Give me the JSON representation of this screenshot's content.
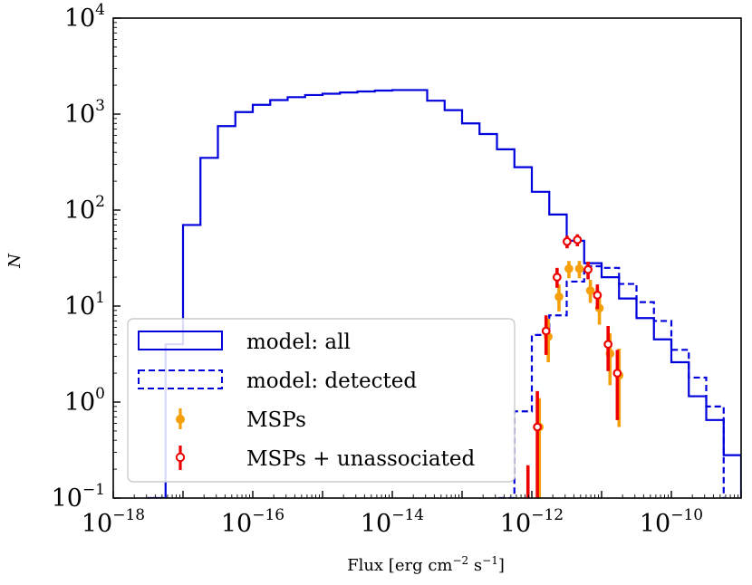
{
  "chart_data": {
    "type": "step-histogram-with-errorbars",
    "xscale": "log",
    "yscale": "log",
    "xlabel": {
      "main": "Flux [erg cm",
      "exp1": "−2",
      "mid": " s",
      "exp2": "−1",
      "end": "]"
    },
    "ylabel": "N",
    "xlim": [
      1e-18,
      1e-09
    ],
    "ylim": [
      0.1,
      10000
    ],
    "x_ticks": [
      {
        "base": "10",
        "exp": "−18",
        "value": 1e-18
      },
      {
        "base": "10",
        "exp": "−16",
        "value": 1e-16
      },
      {
        "base": "10",
        "exp": "−14",
        "value": 1e-14
      },
      {
        "base": "10",
        "exp": "−12",
        "value": 1e-12
      },
      {
        "base": "10",
        "exp": "−10",
        "value": 1e-10
      }
    ],
    "y_ticks": [
      {
        "base": "10",
        "exp": "−1",
        "value": 0.1
      },
      {
        "base": "10",
        "exp": "0",
        "value": 1
      },
      {
        "base": "10",
        "exp": "1",
        "value": 10
      },
      {
        "base": "10",
        "exp": "2",
        "value": 100
      },
      {
        "base": "10",
        "exp": "3",
        "value": 1000
      },
      {
        "base": "10",
        "exp": "4",
        "value": 10000
      }
    ],
    "bin_edges_log10": [
      -17.5,
      -17.25,
      -17.0,
      -16.75,
      -16.5,
      -16.25,
      -16.0,
      -15.75,
      -15.5,
      -15.25,
      -15.0,
      -14.75,
      -14.5,
      -14.25,
      -14.0,
      -13.75,
      -13.5,
      -13.25,
      -13.0,
      -12.75,
      -12.5,
      -12.25,
      -12.0,
      -11.75,
      -11.5,
      -11.25,
      -11.0,
      -10.75,
      -10.5,
      -10.25,
      -10.0,
      -9.75,
      -9.5,
      -9.25,
      -9.0
    ],
    "series": [
      {
        "name": "model: all",
        "style": "solid-step",
        "color": "#0000dd",
        "values": [
          0.1,
          4,
          70,
          350,
          750,
          1050,
          1250,
          1400,
          1500,
          1580,
          1630,
          1680,
          1720,
          1760,
          1780,
          1780,
          1380,
          1100,
          800,
          620,
          430,
          280,
          155,
          90,
          48,
          28,
          20,
          12,
          7.5,
          4.5,
          2.6,
          1.15,
          0.65,
          0.28
        ]
      },
      {
        "name": "model: detected",
        "style": "dashed-step",
        "color": "#0000dd",
        "start_log10": -12.5,
        "values": [
          0.1,
          0.8,
          5,
          8,
          18,
          26,
          25,
          17,
          11,
          7,
          3.5,
          1.8,
          0.9
        ]
      },
      {
        "name": "MSPs",
        "style": "filled-errorbar",
        "color": "#f5a00a",
        "points": [
          {
            "x": 1.28e-12,
            "y": 0.55,
            "lo": 0.1,
            "hi": 1.1
          },
          {
            "x": 1.72e-12,
            "y": 4.8,
            "lo": 2.6,
            "hi": 7.4
          },
          {
            "x": 2.45e-12,
            "y": 12.5,
            "lo": 8.8,
            "hi": 16.8
          },
          {
            "x": 3.4e-12,
            "y": 24.5,
            "lo": 19.5,
            "hi": 29.5
          },
          {
            "x": 4.8e-12,
            "y": 24.5,
            "lo": 19.5,
            "hi": 29.5
          },
          {
            "x": 6.9e-12,
            "y": 14.5,
            "lo": 10.8,
            "hi": 18.8
          },
          {
            "x": 9.3e-12,
            "y": 9.5,
            "lo": 6.4,
            "hi": 13.0
          },
          {
            "x": 1.32e-11,
            "y": 3.2,
            "lo": 1.5,
            "hi": 5.2
          },
          {
            "x": 1.78e-11,
            "y": 1.9,
            "lo": 0.55,
            "hi": 3.6
          }
        ]
      },
      {
        "name": "MSPs + unassociated",
        "style": "hollow-errorbar",
        "color": "#ee0000",
        "points": [
          {
            "x": 8.8e-13,
            "y": 0.1,
            "lo": 0.05,
            "hi": 0.22
          },
          {
            "x": 1.2e-12,
            "y": 0.55,
            "lo": 0.1,
            "hi": 1.3
          },
          {
            "x": 1.6e-12,
            "y": 5.5,
            "lo": 3.1,
            "hi": 8.0
          },
          {
            "x": 2.3e-12,
            "y": 20,
            "lo": 15.5,
            "hi": 25
          },
          {
            "x": 3.2e-12,
            "y": 47,
            "lo": 40,
            "hi": 54
          },
          {
            "x": 4.5e-12,
            "y": 49,
            "lo": 42,
            "hi": 56
          },
          {
            "x": 6.4e-12,
            "y": 24,
            "lo": 19,
            "hi": 29
          },
          {
            "x": 8.7e-12,
            "y": 13,
            "lo": 9.3,
            "hi": 16.8
          },
          {
            "x": 1.24e-11,
            "y": 4,
            "lo": 2.1,
            "hi": 6.2
          },
          {
            "x": 1.68e-11,
            "y": 2,
            "lo": 0.65,
            "hi": 3.5
          }
        ]
      }
    ],
    "legend": {
      "position": "lower-left",
      "entries": [
        "model: all",
        "model: detected",
        "MSPs",
        "MSPs + unassociated"
      ]
    }
  }
}
